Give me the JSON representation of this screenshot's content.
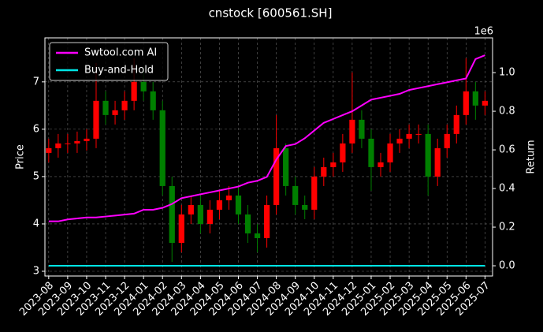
{
  "chart_data": {
    "type": "candlestick",
    "title": "cnstock [600561.SH]",
    "ylabel": "Price",
    "y2label": "Return",
    "y2_offset_label": "1e6",
    "grid": true,
    "legend": "upper left",
    "up_color": "#ff0000",
    "down_color": "#008000",
    "xlim": [
      -0.2,
      23.4
    ],
    "ylim": [
      2.9,
      7.93
    ],
    "y2lim": [
      -0.053,
      1.18
    ],
    "yticks": [
      3,
      4,
      5,
      6,
      7
    ],
    "y2ticks": [
      {
        "value": 0,
        "label": "0.0"
      },
      {
        "value": 0.2,
        "label": "0.2"
      },
      {
        "value": 0.4,
        "label": "0.4"
      },
      {
        "value": 0.6,
        "label": "0.6"
      },
      {
        "value": 0.8,
        "label": "0.8"
      },
      {
        "value": 1,
        "label": "1.0"
      }
    ],
    "xticks": [
      {
        "value": 0,
        "label": "2023-08"
      },
      {
        "value": 1,
        "label": "2023-09"
      },
      {
        "value": 2,
        "label": "2023-10"
      },
      {
        "value": 3,
        "label": "2023-11"
      },
      {
        "value": 4,
        "label": "2023-12"
      },
      {
        "value": 5,
        "label": "2024-01"
      },
      {
        "value": 6,
        "label": "2024-02"
      },
      {
        "value": 7,
        "label": "2024-03"
      },
      {
        "value": 8,
        "label": "2024-04"
      },
      {
        "value": 9,
        "label": "2024-05"
      },
      {
        "value": 10,
        "label": "2024-06"
      },
      {
        "value": 11,
        "label": "2024-07"
      },
      {
        "value": 12,
        "label": "2024-08"
      },
      {
        "value": 13,
        "label": "2024-09"
      },
      {
        "value": 14,
        "label": "2024-10"
      },
      {
        "value": 15,
        "label": "2024-11"
      },
      {
        "value": 16,
        "label": "2024-12"
      },
      {
        "value": 17,
        "label": "2025-01"
      },
      {
        "value": 18,
        "label": "2025-02"
      },
      {
        "value": 19,
        "label": "2025-03"
      },
      {
        "value": 20,
        "label": "2025-04"
      },
      {
        "value": 21,
        "label": "2025-05"
      },
      {
        "value": 22,
        "label": "2025-06"
      },
      {
        "value": 23,
        "label": "2025-07"
      }
    ],
    "x": [
      0,
      0.5,
      1,
      1.5,
      2,
      2.5,
      3,
      3.5,
      4,
      4.5,
      5,
      5.5,
      6,
      6.5,
      7,
      7.5,
      8,
      8.5,
      9,
      9.5,
      10,
      10.5,
      11,
      11.5,
      12,
      12.5,
      13,
      13.5,
      14,
      14.5,
      15,
      15.5,
      16,
      16.5,
      17,
      17.5,
      18,
      18.5,
      19,
      19.5,
      20,
      20.5,
      21,
      21.5,
      22,
      22.5,
      23
    ],
    "open": [
      5.5,
      5.6,
      5.7,
      5.7,
      5.75,
      5.8,
      6.6,
      6.3,
      6.4,
      6.6,
      7.0,
      6.8,
      6.4,
      4.8,
      3.6,
      4.2,
      4.4,
      4.0,
      4.3,
      4.5,
      4.6,
      4.2,
      3.8,
      3.7,
      4.4,
      5.6,
      4.8,
      4.4,
      4.3,
      5.0,
      5.2,
      5.3,
      5.7,
      6.2,
      5.8,
      5.2,
      5.3,
      5.7,
      5.8,
      5.9,
      5.9,
      5.0,
      5.6,
      5.9,
      6.3,
      6.8,
      6.5
    ],
    "high": [
      5.8,
      5.9,
      5.9,
      5.95,
      6.0,
      7.4,
      6.8,
      6.6,
      6.8,
      7.5,
      7.3,
      7.0,
      6.6,
      5.0,
      4.4,
      4.6,
      4.6,
      4.5,
      4.7,
      4.8,
      4.8,
      4.4,
      4.0,
      4.6,
      6.3,
      5.7,
      5.0,
      4.6,
      5.2,
      5.4,
      5.5,
      5.9,
      7.2,
      6.4,
      6.0,
      5.5,
      5.9,
      6.0,
      6.1,
      6.1,
      6.1,
      5.8,
      6.1,
      6.5,
      7.5,
      7.0,
      6.8
    ],
    "low": [
      5.3,
      5.4,
      5.5,
      5.5,
      5.55,
      5.6,
      6.1,
      6.1,
      6.2,
      6.4,
      6.6,
      6.2,
      4.6,
      3.2,
      3.4,
      4.0,
      3.8,
      3.8,
      4.1,
      4.3,
      4.0,
      3.6,
      3.4,
      3.5,
      4.2,
      4.6,
      4.2,
      4.1,
      4.1,
      4.8,
      5.0,
      5.1,
      5.5,
      5.6,
      4.7,
      5.0,
      5.1,
      5.5,
      5.6,
      5.7,
      4.6,
      4.8,
      5.4,
      5.7,
      6.1,
      6.2,
      6.3
    ],
    "close": [
      5.6,
      5.7,
      5.7,
      5.75,
      5.8,
      6.6,
      6.3,
      6.4,
      6.6,
      7.0,
      6.8,
      6.4,
      4.8,
      3.6,
      4.2,
      4.4,
      4.0,
      4.3,
      4.5,
      4.6,
      4.2,
      3.8,
      3.7,
      4.4,
      5.6,
      4.8,
      4.4,
      4.3,
      5.0,
      5.2,
      5.3,
      5.7,
      6.2,
      5.8,
      5.2,
      5.3,
      5.7,
      5.8,
      5.9,
      5.9,
      5.0,
      5.6,
      5.9,
      6.3,
      6.8,
      6.5,
      6.6
    ],
    "series": [
      {
        "name": "Swtool.com AI",
        "color": "#ff00ff",
        "axis": "y2",
        "values": [
          0.23,
          0.23,
          0.24,
          0.245,
          0.25,
          0.25,
          0.255,
          0.26,
          0.265,
          0.27,
          0.29,
          0.29,
          0.3,
          0.32,
          0.35,
          0.36,
          0.37,
          0.38,
          0.39,
          0.4,
          0.41,
          0.43,
          0.44,
          0.46,
          0.55,
          0.62,
          0.63,
          0.66,
          0.7,
          0.74,
          0.76,
          0.78,
          0.8,
          0.83,
          0.86,
          0.87,
          0.88,
          0.89,
          0.91,
          0.92,
          0.93,
          0.94,
          0.95,
          0.96,
          0.97,
          1.07,
          1.09
        ]
      },
      {
        "name": "Buy-and-Hold",
        "color": "#00e5e5",
        "axis": "y2",
        "values": [
          0,
          0,
          0,
          0,
          0,
          0,
          0,
          0,
          0,
          0,
          0,
          0,
          0,
          0,
          0,
          0,
          0,
          0,
          0,
          0,
          0,
          0,
          0,
          0,
          0,
          0,
          0,
          0,
          0,
          0,
          0,
          0,
          0,
          0,
          0,
          0,
          0,
          0,
          0,
          0,
          0,
          0,
          0,
          0,
          0,
          0,
          0
        ]
      }
    ]
  }
}
